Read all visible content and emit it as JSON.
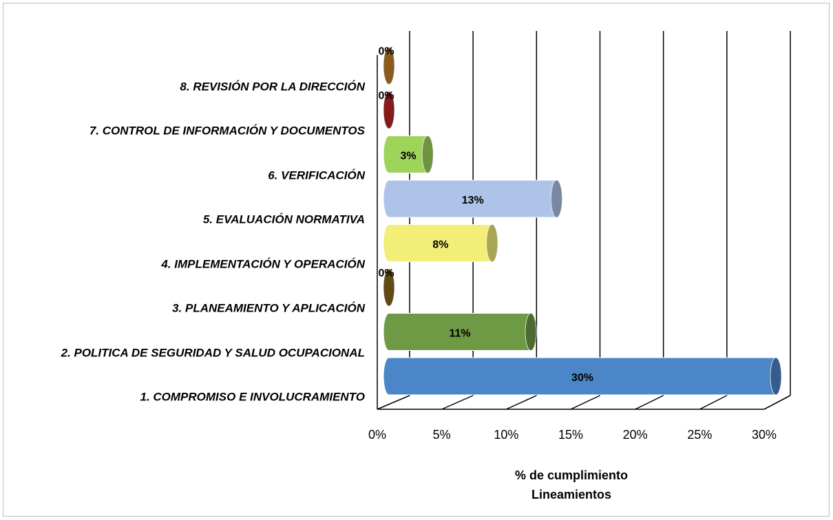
{
  "chart_data": {
    "type": "bar",
    "orientation": "horizontal",
    "style": "3d-cylinder",
    "categories": [
      "1. COMPROMISO E INVOLUCRAMIENTO",
      "2. POLITICA DE SEGURIDAD Y SALUD OCUPACIONAL",
      "3. PLANEAMIENTO Y APLICACIÓN",
      "4. IMPLEMENTACIÓN Y OPERACIÓN",
      "5. EVALUACIÓN NORMATIVA",
      "6. VERIFICACIÓN",
      "7. CONTROL DE INFORMACIÓN Y DOCUMENTOS",
      "8. REVISIÓN POR LA DIRECCIÓN"
    ],
    "values": [
      30,
      11,
      0,
      8,
      13,
      3,
      0,
      0
    ],
    "value_labels": [
      "30%",
      "11%",
      "0%",
      "8%",
      "13%",
      "3%",
      "0%",
      "0%"
    ],
    "colors": [
      "#4a86c8",
      "#6e9a45",
      "#8b6a1e",
      "#f2ee78",
      "#aec3e8",
      "#9fd45a",
      "#c0282a",
      "#c8862a"
    ],
    "xlim": [
      0,
      30
    ],
    "xticks": [
      {
        "value": 0,
        "label": "0%"
      },
      {
        "value": 5,
        "label": "5%"
      },
      {
        "value": 10,
        "label": "10%"
      },
      {
        "value": 15,
        "label": "15%"
      },
      {
        "value": 20,
        "label": "20%"
      },
      {
        "value": 25,
        "label": "25%"
      },
      {
        "value": 30,
        "label": "30%"
      }
    ],
    "xlabel": [
      "% de cumplimiento",
      "Lineamientos"
    ],
    "grid": true
  }
}
